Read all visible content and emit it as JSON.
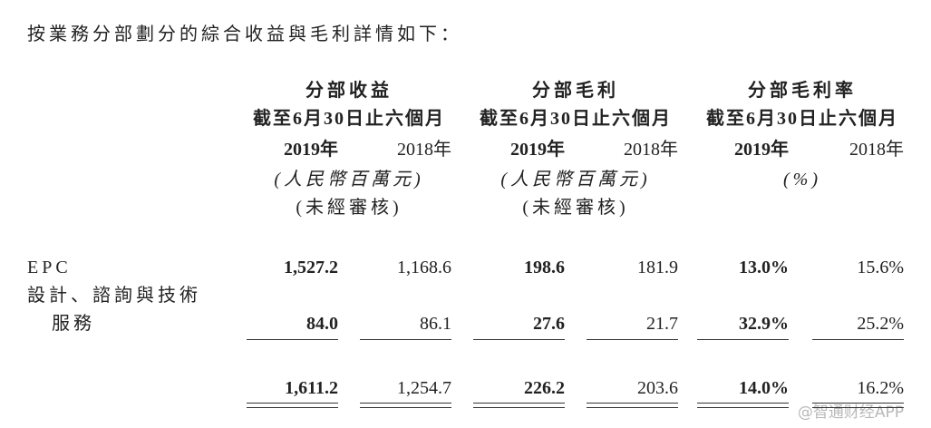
{
  "intro": "按業務分部劃分的綜合收益與毛利詳情如下：",
  "groups": [
    {
      "title": "分部收益",
      "period": "截至6月30日止六個月",
      "years": [
        "2019年",
        "2018年"
      ],
      "units": [
        "(人民幣百萬元)",
        "(未經審核)"
      ]
    },
    {
      "title": "分部毛利",
      "period": "截至6月30日止六個月",
      "years": [
        "2019年",
        "2018年"
      ],
      "units": [
        "(人民幣百萬元)",
        "(未經審核)"
      ]
    },
    {
      "title": "分部毛利率",
      "period": "截至6月30日止六個月",
      "years": [
        "2019年",
        "2018年"
      ],
      "units": [
        "(%)"
      ]
    }
  ],
  "rows": [
    {
      "label": [
        "EPC"
      ],
      "cells": [
        "1,527.2",
        "1,168.6",
        "198.6",
        "181.9",
        "13.0%",
        "15.6%"
      ]
    },
    {
      "label": [
        "設計、諮詢與技術",
        "服務"
      ],
      "cells": [
        "84.0",
        "86.1",
        "27.6",
        "21.7",
        "32.9%",
        "25.2%"
      ]
    }
  ],
  "total": {
    "cells": [
      "1,611.2",
      "1,254.7",
      "226.2",
      "203.6",
      "14.0%",
      "16.2%"
    ]
  },
  "watermark": "@智通财经APP"
}
